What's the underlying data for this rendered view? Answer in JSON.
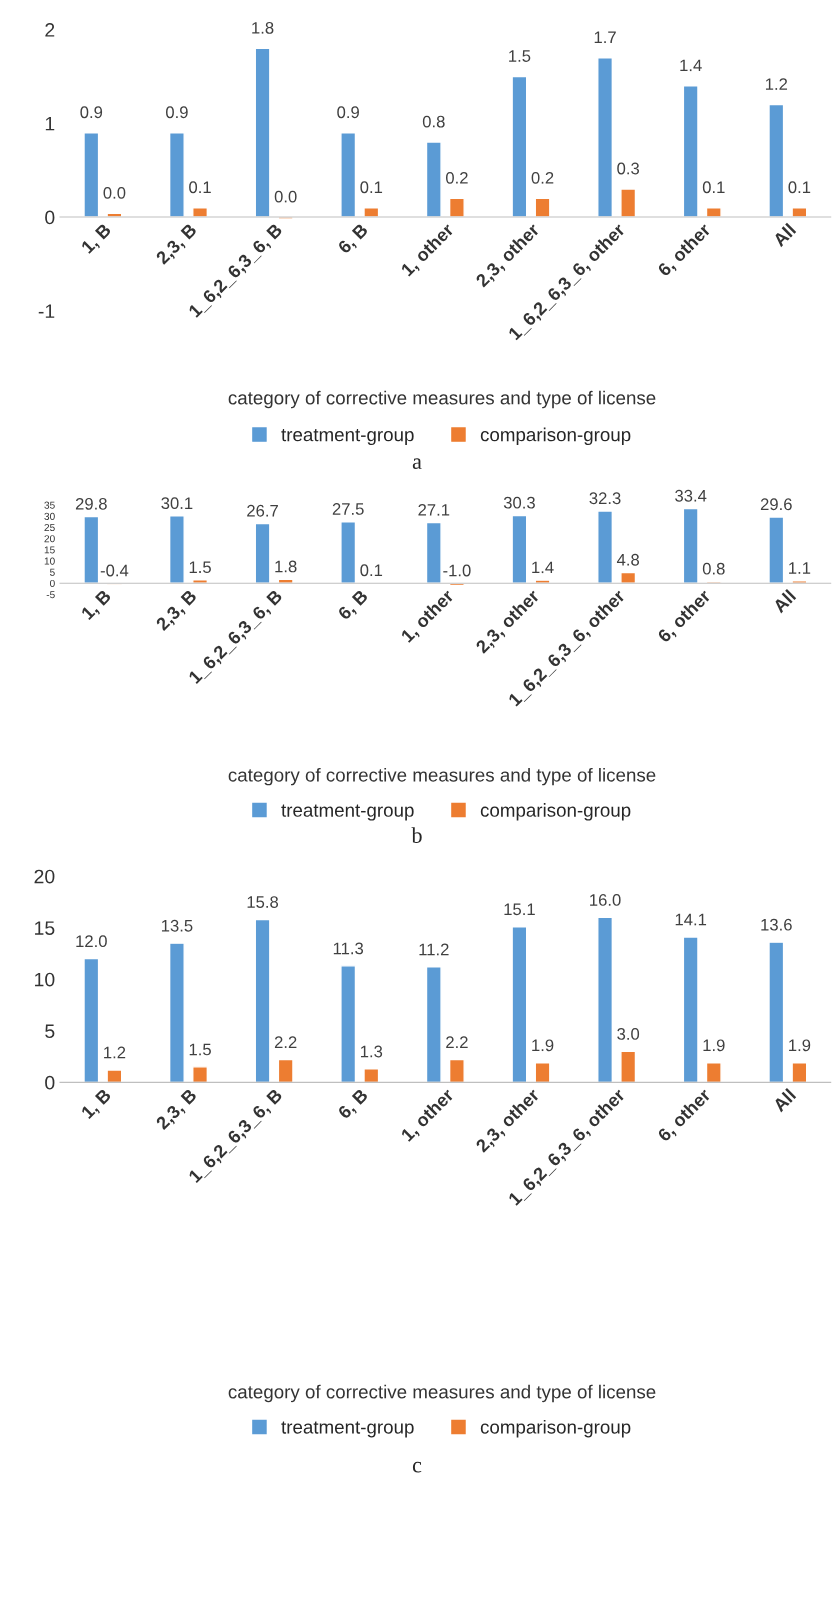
{
  "chart_data": [
    {
      "type": "bar",
      "categories": [
        "1, B",
        "2,3, B",
        "1_6,2_6,3_6, B",
        "6, B",
        "1, other",
        "2,3, other",
        "1_6,2_6,3_6, other",
        "6, other",
        "All"
      ],
      "xlabel": "category of corrective measures and type of license",
      "ylim": [
        -1,
        2
      ],
      "yticks": [
        -1,
        0,
        1,
        2
      ],
      "grid": false,
      "legend": "bottom",
      "annotations": [
        "a"
      ],
      "series": [
        {
          "name": "treatment-group",
          "color": "#5b9bd5",
          "values": [
            0.9,
            0.9,
            1.8,
            0.9,
            0.8,
            1.5,
            1.7,
            1.4,
            1.2
          ],
          "value_labels": [
            "0.9",
            "0.9",
            "1.8",
            "0.9",
            "0.8",
            "1.5",
            "1.7",
            "1.4",
            "1.2"
          ]
        },
        {
          "name": "comparison-group",
          "color": "#ed7d31",
          "values": [
            0.04,
            0.1,
            -0.02,
            0.1,
            0.2,
            0.2,
            0.3,
            0.1,
            0.1
          ],
          "value_labels": [
            "0.0",
            "0.1",
            "0.0",
            "0.1",
            "0.2",
            "0.2",
            "0.3",
            "0.1",
            "0.1"
          ]
        }
      ]
    },
    {
      "type": "bar",
      "categories": [
        "1, B",
        "2,3, B",
        "1_6,2_6,3_6, B",
        "6, B",
        "1, other",
        "2,3, other",
        "1_6,2_6,3_6, other",
        "6, other",
        "All"
      ],
      "xlabel": "category of corrective measures and type of license",
      "ylim": [
        -5,
        35
      ],
      "yticks": [
        -5,
        0,
        5,
        10,
        15,
        20,
        25,
        30,
        35
      ],
      "grid": false,
      "legend": "bottom",
      "annotations": [
        "b"
      ],
      "series": [
        {
          "name": "treatment-group",
          "color": "#5b9bd5",
          "values": [
            29.8,
            30.1,
            26.7,
            27.5,
            27.1,
            30.3,
            32.3,
            33.4,
            29.6
          ],
          "value_labels": [
            "29.8",
            "30.1",
            "26.7",
            "27.5",
            "27.1",
            "30.3",
            "32.3",
            "33.4",
            "29.6"
          ]
        },
        {
          "name": "comparison-group",
          "color": "#ed7d31",
          "values": [
            -0.4,
            1.5,
            1.8,
            0.1,
            -1.0,
            1.4,
            4.8,
            0.8,
            1.1
          ],
          "value_labels": [
            "-0.4",
            "1.5",
            "1.8",
            "0.1",
            "-1.0",
            "1.4",
            "4.8",
            "0.8",
            "1.1"
          ]
        }
      ]
    },
    {
      "type": "bar",
      "categories": [
        "1, B",
        "2,3, B",
        "1_6,2_6,3_6, B",
        "6, B",
        "1, other",
        "2,3, other",
        "1_6,2_6,3_6, other",
        "6, other",
        "All"
      ],
      "xlabel": "category of corrective measures and type of license",
      "ylim": [
        0,
        20
      ],
      "yticks": [
        0,
        5,
        10,
        15,
        20
      ],
      "grid": false,
      "legend": "bottom",
      "annotations": [
        "c"
      ],
      "series": [
        {
          "name": "treatment-group",
          "color": "#5b9bd5",
          "values": [
            12.0,
            13.5,
            15.8,
            11.3,
            11.2,
            15.1,
            16.0,
            14.1,
            13.6
          ],
          "value_labels": [
            "12.0",
            "13.5",
            "15.8",
            "11.3",
            "11.2",
            "15.1",
            "16.0",
            "14.1",
            "13.6"
          ]
        },
        {
          "name": "comparison-group",
          "color": "#ed7d31",
          "values": [
            1.2,
            1.5,
            2.2,
            1.3,
            2.2,
            1.9,
            3.0,
            1.9,
            1.9
          ],
          "value_labels": [
            "1.2",
            "1.5",
            "2.2",
            "1.3",
            "2.2",
            "1.9",
            "3.0",
            "1.9",
            "1.9"
          ]
        }
      ]
    }
  ]
}
